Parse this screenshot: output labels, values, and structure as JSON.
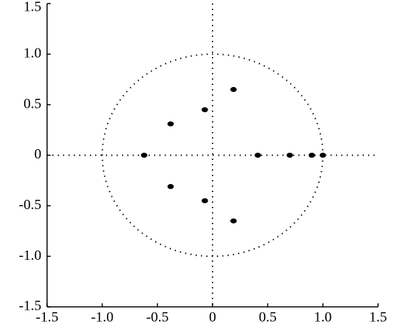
{
  "chart_data": {
    "type": "scatter",
    "series": [
      {
        "color": "#000000",
        "x": [
          0.19,
          -0.07,
          -0.38,
          -0.62,
          -0.38,
          -0.07,
          0.19,
          0.41,
          0.7,
          0.9,
          1.0
        ],
        "values": [
          0.65,
          0.45,
          0.31,
          0,
          -0.31,
          -0.45,
          -0.65,
          0,
          0,
          0,
          0
        ]
      }
    ],
    "xlim": [
      -1.5,
      1.5
    ],
    "xticks": [
      -1.5,
      {
        "value": -1,
        "label": "-1.0"
      },
      -0.5,
      0,
      0.5,
      {
        "value": 1,
        "label": "1.0"
      },
      1.5
    ],
    "ylim": [
      -1.5,
      1.5
    ],
    "yticks": [
      -1.5,
      {
        "value": -1,
        "label": "-1.0"
      },
      -0.5,
      0,
      0.5,
      {
        "value": 1,
        "label": "1.0"
      },
      1.5
    ],
    "zero_lines": true,
    "unit_circle": true
  }
}
